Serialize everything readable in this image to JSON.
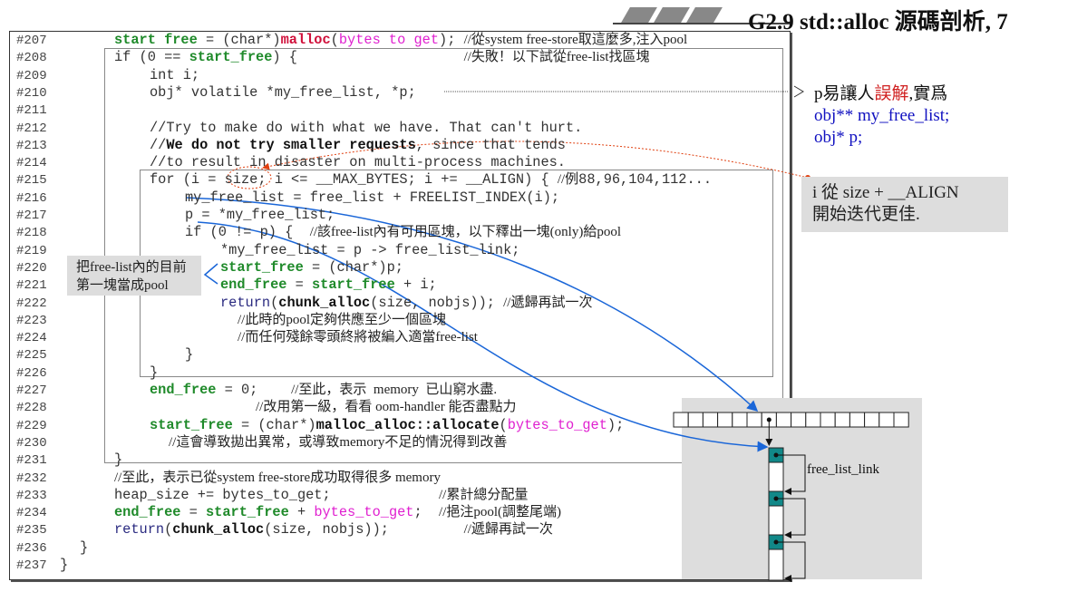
{
  "title": "G2.9 std::alloc 源碼剖析, 7",
  "colors": {
    "keyword_green": "#1f8a2a",
    "malloc_red": "#d0103a",
    "bytes_to_get_magenta": "#e020d0",
    "return_navy": "#2a2a80",
    "arrow_blue": "#1a66d8",
    "annotation_red": "#e04010",
    "note_bg": "#dddddd",
    "node_teal": "#118888"
  },
  "code_lines": [
    {
      "num": "#207",
      "segs": [
        [
          "start free",
          "g"
        ],
        [
          " = (char*)",
          ""
        ],
        [
          "malloc",
          "r"
        ],
        [
          "(",
          ""
        ],
        [
          "bytes to get",
          "m"
        ],
        [
          "); ",
          ""
        ],
        [
          "//從system free-store取這麼多,注入pool",
          "c"
        ]
      ]
    },
    {
      "num": "#208",
      "segs": [
        [
          "if (0 == ",
          ""
        ],
        [
          "start_free",
          "g"
        ],
        [
          ") {                    ",
          ""
        ],
        [
          "//失敗！以下試從free-list找區塊",
          "c"
        ]
      ]
    },
    {
      "num": "#209",
      "segs": [
        [
          "int i;",
          ""
        ]
      ]
    },
    {
      "num": "#210",
      "segs": [
        [
          "obj* volatile *my_free_list, *p;",
          ""
        ]
      ]
    },
    {
      "num": "#211",
      "segs": []
    },
    {
      "num": "#212",
      "segs": [
        [
          "//Try to make do with what we have. That can't hurt.",
          ""
        ]
      ]
    },
    {
      "num": "#213",
      "segs": [
        [
          "//",
          ""
        ],
        [
          "We do not try smaller requests",
          "b"
        ],
        [
          ", since that tends",
          ""
        ]
      ]
    },
    {
      "num": "#214",
      "segs": [
        [
          "//to result in disaster on multi-process machines.",
          ""
        ]
      ]
    },
    {
      "num": "#215",
      "segs": [
        [
          "for (i = size; i <= __MAX_BYTES; i += __ALIGN) { ",
          ""
        ],
        [
          "//例",
          "c"
        ],
        [
          "88,96,104,112...",
          ""
        ]
      ]
    },
    {
      "num": "#216",
      "segs": [
        [
          "my_free_list = free_list + FREELIST_INDEX(i);",
          ""
        ]
      ]
    },
    {
      "num": "#217",
      "segs": [
        [
          "p = *my_free_list;",
          ""
        ]
      ]
    },
    {
      "num": "#218",
      "segs": [
        [
          "if (0 != p) {  ",
          ""
        ],
        [
          "//該free-list內有可用區塊，以下釋出一塊(only)給pool",
          "c"
        ]
      ]
    },
    {
      "num": "#219",
      "segs": [
        [
          "*my_free_list = p -> free_list_link;",
          ""
        ]
      ]
    },
    {
      "num": "#220",
      "segs": [
        [
          "start_free",
          "g"
        ],
        [
          " = (char*)p;",
          ""
        ]
      ]
    },
    {
      "num": "#221",
      "segs": [
        [
          "end_free",
          "g"
        ],
        [
          " = ",
          ""
        ],
        [
          "start_free",
          "g"
        ],
        [
          " + i;",
          ""
        ]
      ]
    },
    {
      "num": "#222",
      "segs": [
        [
          "return",
          "n"
        ],
        [
          "(",
          ""
        ],
        [
          "chunk_alloc",
          "b"
        ],
        [
          "(size, nobjs)); ",
          ""
        ],
        [
          "//遞歸再試一次",
          "c"
        ]
      ]
    },
    {
      "num": "#223",
      "segs": [
        [
          "//此時的pool定夠供應至少一個區塊",
          "c"
        ]
      ]
    },
    {
      "num": "#224",
      "segs": [
        [
          "//而任何殘餘零頭終將被編入適當free-list",
          "c"
        ]
      ]
    },
    {
      "num": "#225",
      "segs": [
        [
          "}",
          ""
        ]
      ]
    },
    {
      "num": "#226",
      "segs": [
        [
          "}",
          ""
        ]
      ]
    },
    {
      "num": "#227",
      "segs": [
        [
          "end_free",
          "g"
        ],
        [
          " = 0;    ",
          ""
        ],
        [
          "//至此，表示  memory  已山窮水盡.",
          "c"
        ]
      ]
    },
    {
      "num": "#228",
      "segs": [
        [
          "//改用第一級，看看 oom-handler 能否盡點力",
          "c"
        ]
      ]
    },
    {
      "num": "#229",
      "segs": [
        [
          "start_free",
          "g"
        ],
        [
          " = (char*)",
          ""
        ],
        [
          "malloc_alloc::allocate",
          "b"
        ],
        [
          "(",
          ""
        ],
        [
          "bytes_to_get",
          "m"
        ],
        [
          ");",
          ""
        ]
      ]
    },
    {
      "num": "#230",
      "segs": [
        [
          "//這會導致拋出異常，或導致memory不足的情況得到改善",
          "c"
        ]
      ]
    },
    {
      "num": "#231",
      "segs": [
        [
          "}",
          ""
        ]
      ]
    },
    {
      "num": "#232",
      "segs": [
        [
          "//至此，表示已從system free-store成功取得很多 memory",
          "c"
        ]
      ]
    },
    {
      "num": "#233",
      "segs": [
        [
          "heap_size += bytes_to_get;             ",
          ""
        ],
        [
          "//累計總分配量",
          "c"
        ]
      ]
    },
    {
      "num": "#234",
      "segs": [
        [
          "end_free",
          "g"
        ],
        [
          " = ",
          ""
        ],
        [
          "start_free",
          "g"
        ],
        [
          " + ",
          ""
        ],
        [
          "bytes_to_get",
          "m"
        ],
        [
          ";  ",
          ""
        ],
        [
          "//挹注pool(調整尾端)",
          "c"
        ]
      ]
    },
    {
      "num": "#235",
      "segs": [
        [
          "return",
          "n"
        ],
        [
          "(",
          ""
        ],
        [
          "chunk_alloc",
          "b"
        ],
        [
          "(size, nobjs));         ",
          ""
        ],
        [
          "//遞歸再試一次",
          "c"
        ]
      ]
    },
    {
      "num": "#236",
      "segs": [
        [
          "}",
          ""
        ]
      ]
    },
    {
      "num": "#237",
      "segs": [
        [
          "}",
          ""
        ]
      ]
    }
  ],
  "notes": {
    "p_note": {
      "line1_a": "p易讓人",
      "line1_red": "誤解",
      "line1_b": ",實爲",
      "line2": "obj** my_free_list;",
      "line3": "obj* p;"
    },
    "i_note": {
      "line1": "i 從 size + __ALIGN",
      "line2": "開始迭代更佳."
    },
    "left_note": {
      "line1": "把free-list內的目前",
      "line2": "第一塊當成pool"
    }
  },
  "diagram": {
    "label": "free_list_link",
    "array_slots": 16,
    "chain_nodes": 3
  }
}
